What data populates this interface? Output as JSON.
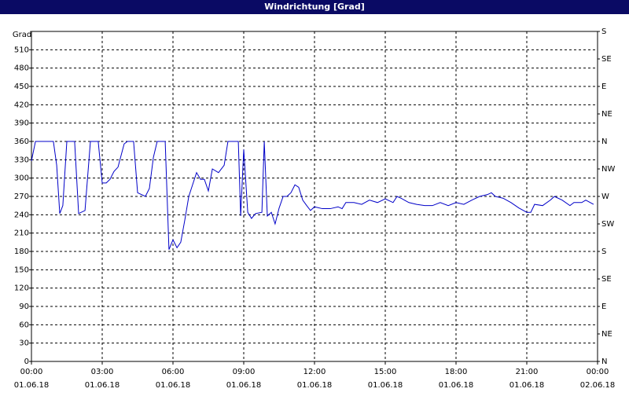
{
  "chart_data": {
    "type": "line",
    "title": "Windrichtung [Grad]",
    "ylabel": "Grad",
    "ylim": [
      0,
      540
    ],
    "yticks": [
      0,
      30,
      60,
      90,
      120,
      150,
      180,
      210,
      240,
      270,
      300,
      330,
      360,
      390,
      420,
      450,
      480,
      510
    ],
    "y2lim": [
      0,
      540
    ],
    "y2ticks": [
      {
        "value": 0,
        "label": "N"
      },
      {
        "value": 45,
        "label": "NE"
      },
      {
        "value": 90,
        "label": "E"
      },
      {
        "value": 135,
        "label": "SE"
      },
      {
        "value": 180,
        "label": "S"
      },
      {
        "value": 225,
        "label": "SW"
      },
      {
        "value": 270,
        "label": "W"
      },
      {
        "value": 315,
        "label": "NW"
      },
      {
        "value": 360,
        "label": "N"
      },
      {
        "value": 405,
        "label": "NE"
      },
      {
        "value": 450,
        "label": "E"
      },
      {
        "value": 495,
        "label": "SE"
      },
      {
        "value": 540,
        "label": "S"
      }
    ],
    "xlim": [
      0,
      24
    ],
    "xticks": [
      {
        "value": 0,
        "label": "00:00"
      },
      {
        "value": 3,
        "label": "03:00"
      },
      {
        "value": 6,
        "label": "06:00"
      },
      {
        "value": 9,
        "label": "09:00"
      },
      {
        "value": 12,
        "label": "12:00"
      },
      {
        "value": 15,
        "label": "15:00"
      },
      {
        "value": 18,
        "label": "18:00"
      },
      {
        "value": 21,
        "label": "21:00"
      },
      {
        "value": 24,
        "label": "00:00"
      }
    ],
    "xtick_dates": [
      "01.06.18",
      "01.06.18",
      "01.06.18",
      "01.06.18",
      "01.06.18",
      "01.06.18",
      "01.06.18",
      "01.06.18",
      "02.06.18"
    ],
    "grid": true,
    "series": [
      {
        "color": "#0000c8",
        "x": [
          0,
          0.17,
          0.93,
          1.07,
          1.2,
          1.33,
          1.5,
          1.83,
          2,
          2.27,
          2.5,
          2.83,
          3,
          3.17,
          3.33,
          3.5,
          3.67,
          3.93,
          4.07,
          4.33,
          4.5,
          4.83,
          5,
          5.17,
          5.33,
          5.67,
          5.83,
          6,
          6.17,
          6.33,
          6.5,
          6.67,
          6.83,
          7,
          7.17,
          7.33,
          7.5,
          7.67,
          7.93,
          8.17,
          8.33,
          8.67,
          8.77,
          8.87,
          9,
          9.17,
          9.33,
          9.5,
          9.77,
          9.87,
          10,
          10.17,
          10.33,
          10.5,
          10.67,
          10.83,
          11,
          11.17,
          11.33,
          11.5,
          11.67,
          11.83,
          12,
          12.33,
          12.67,
          13,
          13.17,
          13.33,
          13.67,
          14,
          14.33,
          14.67,
          15,
          15.33,
          15.5,
          15.67,
          16,
          16.33,
          16.67,
          17,
          17.33,
          17.67,
          18,
          18.33,
          18.67,
          19,
          19.33,
          19.5,
          19.67,
          20,
          20.33,
          20.67,
          21,
          21.17,
          21.33,
          21.67,
          22,
          22.17,
          22.5,
          22.83,
          23,
          23.33,
          23.5,
          23.83
        ],
        "values": [
          328,
          360,
          360,
          321,
          242,
          255,
          360,
          360,
          242,
          247,
          360,
          360,
          292,
          292,
          298,
          311,
          318,
          356,
          360,
          360,
          276,
          270,
          283,
          334,
          360,
          360,
          183,
          199,
          186,
          195,
          231,
          270,
          289,
          309,
          298,
          298,
          279,
          315,
          309,
          321,
          360,
          360,
          360,
          238,
          347,
          244,
          234,
          242,
          244,
          360,
          238,
          244,
          225,
          251,
          270,
          270,
          276,
          289,
          285,
          264,
          255,
          247,
          253,
          250,
          250,
          253,
          250,
          260,
          260,
          257,
          264,
          260,
          266,
          260,
          270,
          267,
          260,
          257,
          255,
          255,
          260,
          255,
          260,
          257,
          264,
          270,
          273,
          276,
          270,
          267,
          260,
          251,
          244,
          244,
          257,
          255,
          264,
          270,
          264,
          255,
          260,
          260,
          264,
          257
        ]
      }
    ]
  }
}
